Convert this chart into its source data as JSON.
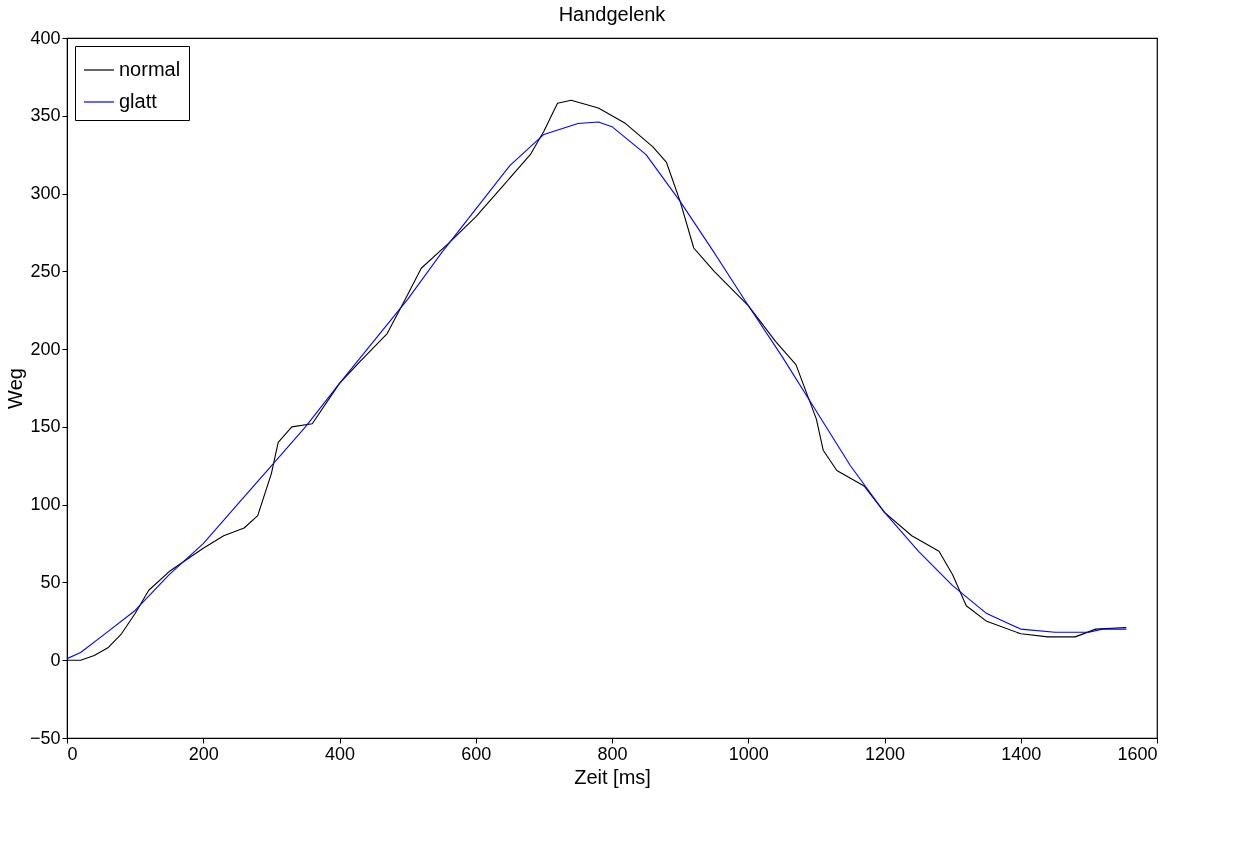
{
  "chart_data": {
    "type": "line",
    "title": "Handgelenk",
    "xlabel": "Zeit [ms]",
    "ylabel": "Weg",
    "xlim": [
      0,
      1600
    ],
    "xticks": [
      0,
      200,
      400,
      600,
      800,
      1000,
      1200,
      1400,
      1600
    ],
    "ylim": [
      -50,
      400
    ],
    "yticks": [
      -50,
      0,
      50,
      100,
      150,
      200,
      250,
      300,
      350,
      400
    ],
    "grid": false,
    "legend": "top left",
    "line_style": "solid",
    "marker": "none",
    "series": [
      {
        "name": "normal",
        "color": "#000000",
        "x": [
          0,
          20,
          40,
          60,
          80,
          100,
          120,
          150,
          200,
          230,
          260,
          280,
          300,
          310,
          330,
          360,
          400,
          430,
          470,
          500,
          520,
          560,
          600,
          640,
          680,
          700,
          720,
          740,
          780,
          820,
          860,
          880,
          900,
          920,
          950,
          1000,
          1040,
          1070,
          1100,
          1110,
          1130,
          1170,
          1200,
          1240,
          1280,
          1300,
          1320,
          1350,
          1400,
          1440,
          1480,
          1510,
          1555
        ],
        "values": [
          0,
          0,
          3,
          8,
          17,
          30,
          45,
          57,
          72,
          80,
          85,
          93,
          120,
          140,
          150,
          152,
          178,
          192,
          210,
          235,
          252,
          268,
          285,
          305,
          325,
          340,
          358,
          360,
          355,
          345,
          330,
          320,
          295,
          265,
          250,
          228,
          205,
          190,
          155,
          135,
          122,
          112,
          95,
          80,
          70,
          55,
          35,
          25,
          17,
          15,
          15,
          20,
          21
        ]
      },
      {
        "name": "glatt",
        "color": "#0000ff",
        "x": [
          0,
          20,
          50,
          100,
          150,
          200,
          250,
          300,
          350,
          400,
          450,
          500,
          550,
          600,
          650,
          700,
          750,
          780,
          800,
          850,
          900,
          950,
          1000,
          1050,
          1100,
          1150,
          1200,
          1250,
          1300,
          1350,
          1400,
          1450,
          1500,
          1520,
          1555
        ],
        "values": [
          1,
          5,
          15,
          32,
          55,
          75,
          100,
          125,
          150,
          178,
          205,
          232,
          262,
          290,
          318,
          338,
          345,
          346,
          343,
          325,
          295,
          262,
          228,
          195,
          160,
          125,
          95,
          70,
          48,
          30,
          20,
          18,
          18,
          20,
          20
        ]
      }
    ]
  }
}
